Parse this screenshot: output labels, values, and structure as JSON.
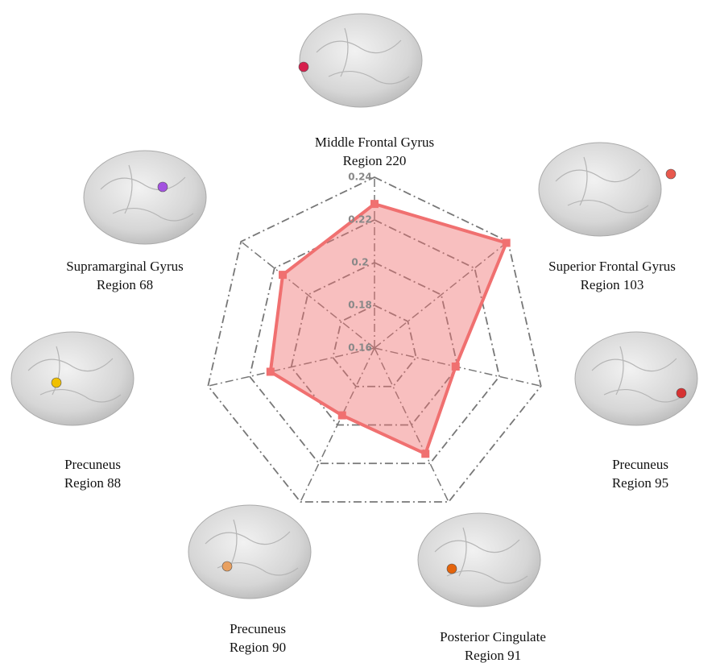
{
  "chart_data": {
    "type": "radar",
    "categories": [
      "Middle Frontal Gyrus",
      "Superior Frontal Gyrus",
      "Precuneus",
      "Posterior Cingulate",
      "Precuneus",
      "Precuneus",
      "Supramarginal Gyrus"
    ],
    "regions": [
      "Region 220",
      "Region 103",
      "Region 95",
      "Region 91",
      "Region 90",
      "Region 88",
      "Region 68"
    ],
    "region_colors": [
      "#d61f4c",
      "#e8584d",
      "#d63232",
      "#e4640c",
      "#e8a060",
      "#f0c000",
      "#a352e0"
    ],
    "values": [
      0.2275,
      0.239,
      0.199,
      0.215,
      0.195,
      0.21,
      0.215
    ],
    "color": "#f07070",
    "rlim": [
      0.16,
      0.24
    ],
    "rticks": [
      0.16,
      0.18,
      0.2,
      0.22,
      0.24
    ],
    "grid": true
  }
}
